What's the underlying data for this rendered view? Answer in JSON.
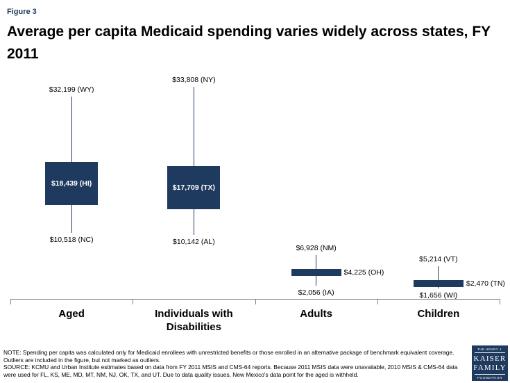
{
  "header": {
    "figure_label": "Figure 3",
    "title": "Average per capita Medicaid spending varies widely across states, FY 2011"
  },
  "chart_data": {
    "type": "range-bar",
    "title": "Average per capita Medicaid spending varies widely across states, FY 2011",
    "ylim": [
      0,
      36000
    ],
    "legend": "none",
    "grid": false,
    "groups": [
      {
        "category": "Aged",
        "high": {
          "value": 32199,
          "label": "$32,199 (WY)"
        },
        "mid": {
          "value": 18439,
          "label": "$18,439 (HI)",
          "style": "box"
        },
        "low": {
          "value": 10518,
          "label": "$10,518 (NC)"
        }
      },
      {
        "category": "Individuals with Disabilities",
        "high": {
          "value": 33808,
          "label": "$33,808 (NY)"
        },
        "mid": {
          "value": 17709,
          "label": "$17,709 (TX)",
          "style": "box"
        },
        "low": {
          "value": 10142,
          "label": "$10,142 (AL)"
        }
      },
      {
        "category": "Adults",
        "high": {
          "value": 6928,
          "label": "$6,928 (NM)"
        },
        "mid": {
          "value": 4225,
          "label": "$4,225 (OH)",
          "style": "bar"
        },
        "low": {
          "value": 2056,
          "label": "$2,056 (IA)"
        }
      },
      {
        "category": "Children",
        "high": {
          "value": 5214,
          "label": "$5,214 (VT)"
        },
        "mid": {
          "value": 2470,
          "label": "$2,470 (TN)",
          "style": "bar"
        },
        "low": {
          "value": 1656,
          "label": "$1,656 (WI)"
        }
      }
    ],
    "colors": {
      "mark": "#1F3A5F",
      "axis": "#7F7F7F",
      "label_text": "#000000",
      "box_text": "#FFFFFF"
    }
  },
  "footer": {
    "note": "NOTE: Spending per capita was calculated only for Medicaid enrollees with unrestricted benefits or those enrolled in an alternative package of benchmark equivalent coverage. Outliers are included in the figure, but not marked as outliers.",
    "source": "SOURCE: KCMU and Urban Institute estimates based on data from FY 2011 MSIS and CMS-64 reports. Because 2011 MSIS data were unavailable, 2010 MSIS & CMS-64 data were used for FL, KS, ME, MD, MT, NM, NJ, OK, TX, and UT. Due to data quality issues, New Mexico's data point  for the aged is withheld."
  },
  "logo": {
    "line1": "THE HENRY J.",
    "line2": "KAISER",
    "line3": "FAMILY",
    "line4": "FOUNDATION"
  }
}
